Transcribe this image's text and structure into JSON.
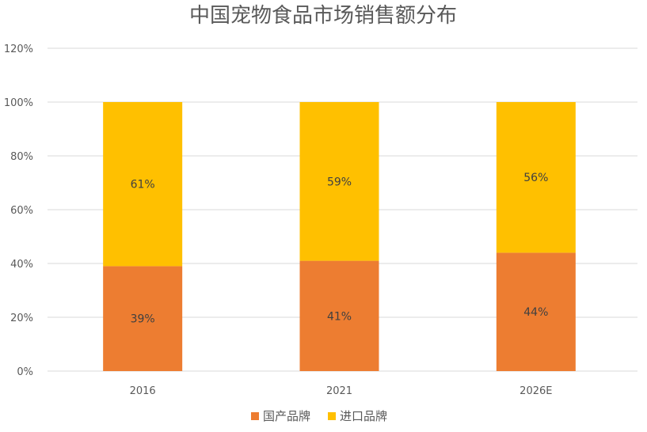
{
  "chart_data": {
    "type": "bar",
    "stacked": true,
    "title": "中国宠物食品市场销售额分布",
    "xlabel": "",
    "ylabel": "",
    "categories": [
      "2016",
      "2021",
      "2026E"
    ],
    "series": [
      {
        "name": "国产品牌",
        "values": [
          39,
          41,
          44
        ],
        "labels": [
          "39%",
          "41%",
          "44%"
        ],
        "color": "#ED7D31"
      },
      {
        "name": "进口品牌",
        "values": [
          61,
          59,
          56
        ],
        "labels": [
          "61%",
          "59%",
          "56%"
        ],
        "color": "#FFC000"
      }
    ],
    "ylim": [
      0,
      120
    ],
    "yticks": [
      0,
      20,
      40,
      60,
      80,
      100,
      120
    ],
    "ytick_labels": [
      "0%",
      "20%",
      "40%",
      "60%",
      "80%",
      "100%",
      "120%"
    ],
    "grid": true,
    "legend_position": "bottom"
  }
}
